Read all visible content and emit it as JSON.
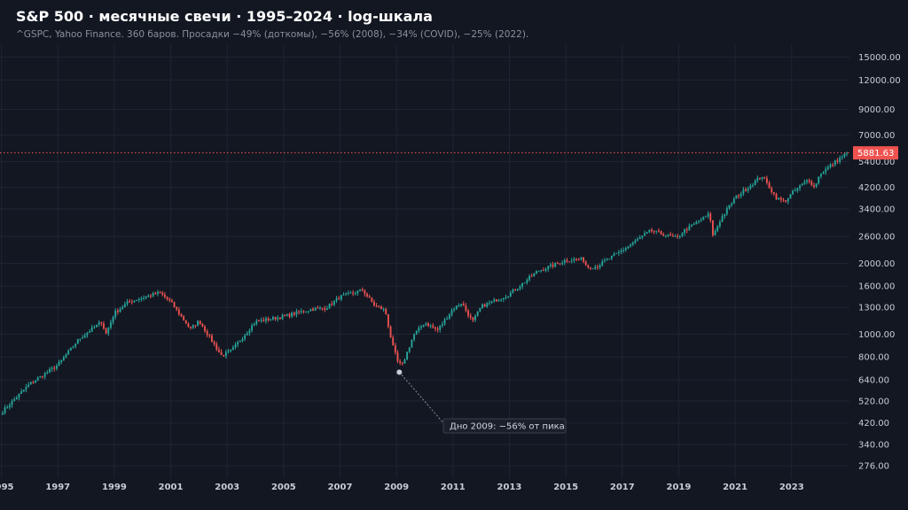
{
  "header": {
    "title": "S&P 500 · месячные свечи · 1995–2024 · log-шкала",
    "subtitle": "^GSPC, Yahoo Finance. 360 баров. Просадки −49% (доткомы), −56% (2008), −34% (COVID), −25% (2022)."
  },
  "colors": {
    "background": "#131722",
    "grid": "#1f2433",
    "up": "#26a69a",
    "down": "#ef5350",
    "last_price": "#ef5350",
    "annotation": "#c8ccd6"
  },
  "chart_data": {
    "type": "candlestick",
    "scale": "log",
    "ylim": [
      245,
      17000
    ],
    "xlim": [
      1994.95,
      2025.05
    ],
    "yticks": [
      276,
      340,
      420,
      520,
      640,
      800,
      1000,
      1300,
      1600,
      2000,
      2600,
      3400,
      4200,
      5400,
      7000,
      9000,
      12000,
      15000
    ],
    "ytick_labels": [
      "276.00",
      "340.00",
      "420.00",
      "520.00",
      "640.00",
      "800.00",
      "1000.00",
      "1300.00",
      "1600.00",
      "2000.00",
      "2600.00",
      "3400.00",
      "4200.00",
      "5400.00",
      "7000.00",
      "9000.00",
      "12000.00",
      "15000.00"
    ],
    "xticks": [
      1995,
      1997,
      1999,
      2001,
      2003,
      2005,
      2007,
      2009,
      2011,
      2013,
      2015,
      2017,
      2019,
      2021,
      2023
    ],
    "xtick_labels": [
      "1995",
      "1997",
      "1999",
      "2001",
      "2003",
      "2005",
      "2007",
      "2009",
      "2011",
      "2013",
      "2015",
      "2017",
      "2019",
      "2021",
      "2023"
    ],
    "start_year": 1995,
    "bars_count": 360,
    "monthly_anchors": [
      [
        1995.0,
        465
      ],
      [
        1996.0,
        615
      ],
      [
        1997.0,
        740
      ],
      [
        1997.75,
        955
      ],
      [
        1998.55,
        1130
      ],
      [
        1998.7,
        1000
      ],
      [
        1999.0,
        1230
      ],
      [
        1999.5,
        1370
      ],
      [
        2000.0,
        1430
      ],
      [
        2000.6,
        1500
      ],
      [
        2001.0,
        1370
      ],
      [
        2001.7,
        1050
      ],
      [
        2002.0,
        1140
      ],
      [
        2002.55,
        900
      ],
      [
        2002.8,
        810
      ],
      [
        2003.15,
        850
      ],
      [
        2003.6,
        990
      ],
      [
        2004.0,
        1130
      ],
      [
        2005.0,
        1190
      ],
      [
        2006.0,
        1280
      ],
      [
        2006.5,
        1290
      ],
      [
        2007.0,
        1440
      ],
      [
        2007.8,
        1540
      ],
      [
        2008.2,
        1330
      ],
      [
        2008.6,
        1260
      ],
      [
        2008.85,
        900
      ],
      [
        2009.05,
        760
      ],
      [
        2009.2,
        735
      ],
      [
        2009.6,
        990
      ],
      [
        2010.0,
        1120
      ],
      [
        2010.45,
        1040
      ],
      [
        2011.0,
        1280
      ],
      [
        2011.3,
        1360
      ],
      [
        2011.7,
        1130
      ],
      [
        2012.0,
        1310
      ],
      [
        2013.0,
        1480
      ],
      [
        2014.0,
        1850
      ],
      [
        2015.0,
        2060
      ],
      [
        2015.6,
        2090
      ],
      [
        2015.75,
        1930
      ],
      [
        2016.1,
        1940
      ],
      [
        2017.0,
        2270
      ],
      [
        2018.0,
        2750
      ],
      [
        2018.95,
        2550
      ],
      [
        2019.1,
        2700
      ],
      [
        2020.1,
        3240
      ],
      [
        2020.2,
        2600
      ],
      [
        2020.5,
        3100
      ],
      [
        2021.0,
        3800
      ],
      [
        2021.95,
        4700
      ],
      [
        2022.45,
        3800
      ],
      [
        2022.75,
        3650
      ],
      [
        2023.0,
        3950
      ],
      [
        2023.6,
        4550
      ],
      [
        2023.8,
        4200
      ],
      [
        2024.0,
        4780
      ],
      [
        2024.95,
        5881.63
      ]
    ],
    "last_price": 5881.63,
    "last_price_label": "5881.63",
    "annotation": {
      "text": "Дно 2009: −56% от пика",
      "x": 2009.1,
      "y": 690
    }
  }
}
